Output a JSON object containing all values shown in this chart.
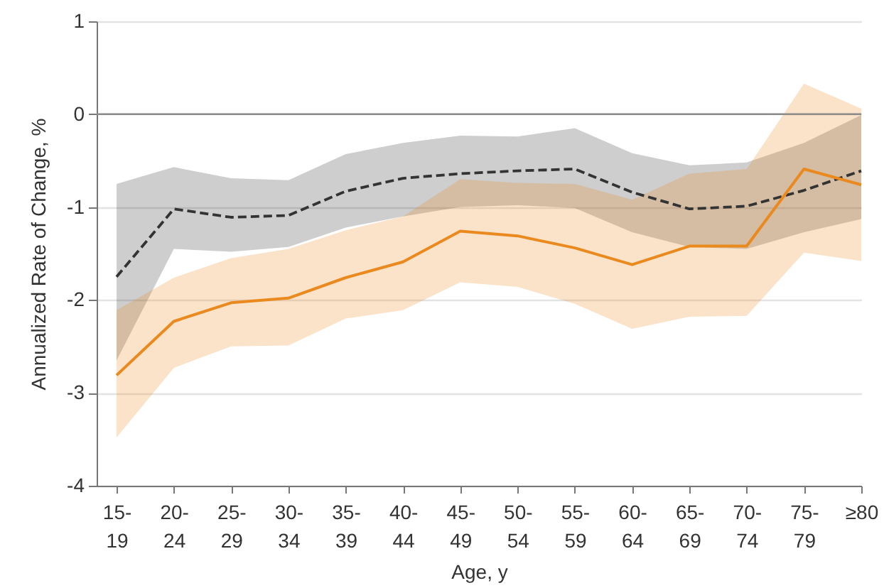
{
  "chart_data": {
    "type": "line",
    "xlabel": "Age, y",
    "ylabel": "Annualized Rate of Change, %",
    "categories": [
      "15-19",
      "20-24",
      "25-29",
      "30-34",
      "35-39",
      "40-44",
      "45-49",
      "50-54",
      "55-59",
      "60-64",
      "65-69",
      "70-74",
      "75-79",
      "≥80"
    ],
    "ylim": [
      -4,
      1
    ],
    "yticks": [
      -4,
      -3,
      -2,
      -1,
      0,
      1
    ],
    "grid": "y",
    "ref_lines": [
      {
        "axis": "y",
        "value": 0,
        "color": "#8c8c8c"
      }
    ],
    "series": [
      {
        "color": "#333333",
        "line_style": "dashed",
        "values": [
          -1.75,
          -1.02,
          -1.11,
          -1.09,
          -0.83,
          -0.69,
          -0.64,
          -0.61,
          -0.59,
          -0.84,
          -1.02,
          -0.99,
          -0.82,
          -0.61
        ],
        "upper": [
          -0.75,
          -0.57,
          -0.69,
          -0.71,
          -0.43,
          -0.31,
          -0.23,
          -0.24,
          -0.15,
          -0.42,
          -0.55,
          -0.52,
          -0.31,
          -0.01
        ],
        "lower": [
          -2.65,
          -1.45,
          -1.48,
          -1.43,
          -1.22,
          -1.1,
          -1.0,
          -0.98,
          -1.01,
          -1.27,
          -1.43,
          -1.45,
          -1.27,
          -1.13
        ]
      },
      {
        "color": "#ea8a1e",
        "line_style": "solid",
        "values": [
          -2.81,
          -2.23,
          -2.03,
          -1.98,
          -1.76,
          -1.59,
          -1.26,
          -1.31,
          -1.44,
          -1.62,
          -1.42,
          -1.42,
          -0.59,
          -0.76
        ],
        "upper": [
          -2.11,
          -1.76,
          -1.55,
          -1.45,
          -1.25,
          -1.1,
          -0.7,
          -0.74,
          -0.75,
          -0.92,
          -0.64,
          -0.59,
          0.33,
          0.06
        ],
        "lower": [
          -3.48,
          -2.73,
          -2.5,
          -2.49,
          -2.2,
          -2.11,
          -1.81,
          -1.86,
          -2.04,
          -2.31,
          -2.18,
          -2.17,
          -1.49,
          -1.58
        ]
      }
    ]
  }
}
